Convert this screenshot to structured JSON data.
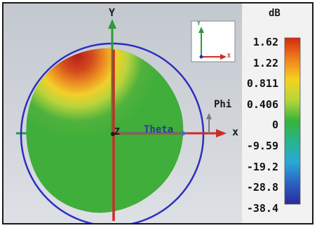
{
  "axes": {
    "y_label": "Y",
    "x_label": "x",
    "z_label": "Z",
    "theta_label": "Theta",
    "phi_label": "Phi"
  },
  "triad": {
    "y_label": "Y",
    "x_label": "X"
  },
  "color_scale": {
    "unit": "dB",
    "ticks": [
      "1.62",
      "1.22",
      "0.811",
      "0.406",
      "0",
      "-9.59",
      "-19.2",
      "-28.8",
      "-38.4"
    ],
    "colors": [
      "#d42a10",
      "#f07f1c",
      "#f4d21f",
      "#b7d63a",
      "#36b33a",
      "#25b58e",
      "#2aa7d8",
      "#2a62c2",
      "#2b2a9c"
    ]
  },
  "colors": {
    "pattern_green": "#3fae3a",
    "hot": "#c2361f",
    "ring": "#2b2fbf",
    "y_axis": "#2e9a3a",
    "z_axis": "#cf2a2a"
  }
}
